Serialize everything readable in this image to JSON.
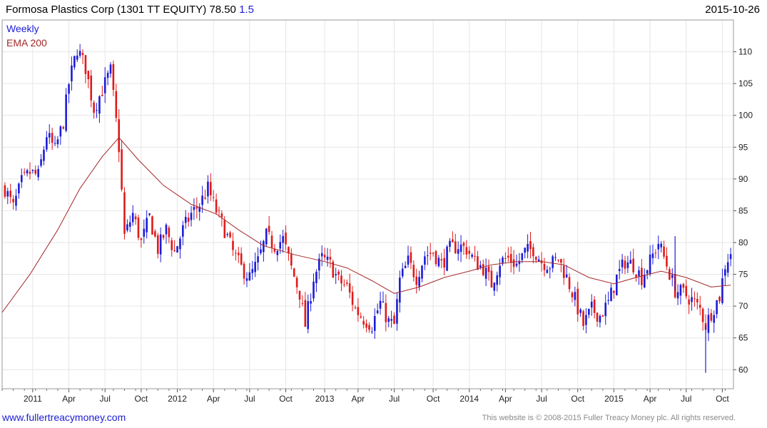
{
  "header": {
    "title": "Formosa Plastics Corp (1301 TT EQUITY) 78.50",
    "change": "1.5",
    "date": "2015-10-26"
  },
  "footer": {
    "url": "www.fullertreacymoney.com",
    "copyright": "This website is © 2008-2015 Fuller Treacy Money plc. All rights reserved."
  },
  "colors": {
    "up": "#1c1cd6",
    "down": "#e01a1a",
    "ema": "#a52828",
    "grid": "#e6e6e6",
    "frame": "#9a9a9a"
  },
  "chart_data": {
    "type": "candlestick",
    "frequency": "weekly",
    "legend": [
      "Weekly",
      "EMA 200"
    ],
    "legend_position": "top-left",
    "ylim": [
      57,
      115
    ],
    "y_ticks": [
      60,
      65,
      70,
      75,
      80,
      85,
      90,
      95,
      100,
      105,
      110
    ],
    "y_axis_side": "right",
    "grid": true,
    "x_range": [
      "2010-10-18",
      "2015-11-02"
    ],
    "x_ticks": [
      {
        "label": "2011",
        "date": "2011-01-03"
      },
      {
        "label": "Apr",
        "date": "2011-04-04"
      },
      {
        "label": "Jul",
        "date": "2011-07-04"
      },
      {
        "label": "Oct",
        "date": "2011-10-03"
      },
      {
        "label": "2012",
        "date": "2012-01-02"
      },
      {
        "label": "Apr",
        "date": "2012-04-02"
      },
      {
        "label": "Jul",
        "date": "2012-07-02"
      },
      {
        "label": "Oct",
        "date": "2012-10-01"
      },
      {
        "label": "2013",
        "date": "2013-01-07"
      },
      {
        "label": "Apr",
        "date": "2013-04-01"
      },
      {
        "label": "Jul",
        "date": "2013-07-01"
      },
      {
        "label": "Oct",
        "date": "2013-10-07"
      },
      {
        "label": "2014",
        "date": "2014-01-06"
      },
      {
        "label": "Apr",
        "date": "2014-04-07"
      },
      {
        "label": "Jul",
        "date": "2014-07-07"
      },
      {
        "label": "Oct",
        "date": "2014-10-06"
      },
      {
        "label": "2015",
        "date": "2015-01-05"
      },
      {
        "label": "Apr",
        "date": "2015-04-06"
      },
      {
        "label": "Jul",
        "date": "2015-07-06"
      },
      {
        "label": "Oct",
        "date": "2015-10-05"
      }
    ],
    "weekly_closes": [
      {
        "date": "2010-10-25",
        "close": 88.5
      },
      {
        "date": "2010-11-15",
        "close": 85.5
      },
      {
        "date": "2010-12-06",
        "close": 89.5
      },
      {
        "date": "2010-12-27",
        "close": 91.0
      },
      {
        "date": "2011-01-17",
        "close": 90.5
      },
      {
        "date": "2011-02-07",
        "close": 97.0
      },
      {
        "date": "2011-02-28",
        "close": 94.5
      },
      {
        "date": "2011-03-21",
        "close": 99.0
      },
      {
        "date": "2011-04-04",
        "close": 105.0
      },
      {
        "date": "2011-04-25",
        "close": 110.5
      },
      {
        "date": "2011-05-16",
        "close": 107.5
      },
      {
        "date": "2011-06-06",
        "close": 101.0
      },
      {
        "date": "2011-06-27",
        "close": 104.0
      },
      {
        "date": "2011-07-18",
        "close": 107.0
      },
      {
        "date": "2011-08-08",
        "close": 95.0
      },
      {
        "date": "2011-08-22",
        "close": 81.0
      },
      {
        "date": "2011-09-12",
        "close": 84.5
      },
      {
        "date": "2011-10-03",
        "close": 80.0
      },
      {
        "date": "2011-10-24",
        "close": 84.0
      },
      {
        "date": "2011-11-14",
        "close": 79.0
      },
      {
        "date": "2011-12-05",
        "close": 82.0
      },
      {
        "date": "2011-12-26",
        "close": 78.5
      },
      {
        "date": "2012-01-16",
        "close": 82.0
      },
      {
        "date": "2012-02-06",
        "close": 84.5
      },
      {
        "date": "2012-02-27",
        "close": 86.0
      },
      {
        "date": "2012-03-19",
        "close": 88.5
      },
      {
        "date": "2012-04-09",
        "close": 85.0
      },
      {
        "date": "2012-04-30",
        "close": 82.0
      },
      {
        "date": "2012-05-21",
        "close": 78.5
      },
      {
        "date": "2012-06-11",
        "close": 76.0
      },
      {
        "date": "2012-07-02",
        "close": 74.5
      },
      {
        "date": "2012-07-23",
        "close": 77.0
      },
      {
        "date": "2012-08-13",
        "close": 81.0
      },
      {
        "date": "2012-09-03",
        "close": 79.5
      },
      {
        "date": "2012-09-24",
        "close": 80.5
      },
      {
        "date": "2012-10-15",
        "close": 76.0
      },
      {
        "date": "2012-11-05",
        "close": 72.0
      },
      {
        "date": "2012-11-19",
        "close": 67.0
      },
      {
        "date": "2012-12-10",
        "close": 74.5
      },
      {
        "date": "2012-12-31",
        "close": 77.5
      },
      {
        "date": "2013-01-21",
        "close": 76.5
      },
      {
        "date": "2013-02-11",
        "close": 74.0
      },
      {
        "date": "2013-03-04",
        "close": 73.0
      },
      {
        "date": "2013-03-25",
        "close": 69.5
      },
      {
        "date": "2013-04-15",
        "close": 68.0
      },
      {
        "date": "2013-05-06",
        "close": 67.0
      },
      {
        "date": "2013-05-27",
        "close": 70.5
      },
      {
        "date": "2013-06-17",
        "close": 67.5
      },
      {
        "date": "2013-07-01",
        "close": 67.0
      },
      {
        "date": "2013-07-15",
        "close": 74.0
      },
      {
        "date": "2013-08-05",
        "close": 77.0
      },
      {
        "date": "2013-08-26",
        "close": 74.5
      },
      {
        "date": "2013-09-16",
        "close": 78.0
      },
      {
        "date": "2013-10-07",
        "close": 78.5
      },
      {
        "date": "2013-10-28",
        "close": 76.5
      },
      {
        "date": "2013-11-18",
        "close": 79.0
      },
      {
        "date": "2013-12-09",
        "close": 79.5
      },
      {
        "date": "2013-12-30",
        "close": 79.0
      },
      {
        "date": "2014-01-20",
        "close": 77.0
      },
      {
        "date": "2014-02-10",
        "close": 76.0
      },
      {
        "date": "2014-03-03",
        "close": 73.5
      },
      {
        "date": "2014-03-24",
        "close": 77.0
      },
      {
        "date": "2014-04-14",
        "close": 77.5
      },
      {
        "date": "2014-05-05",
        "close": 76.5
      },
      {
        "date": "2014-05-26",
        "close": 78.5
      },
      {
        "date": "2014-06-16",
        "close": 79.0
      },
      {
        "date": "2014-07-07",
        "close": 77.0
      },
      {
        "date": "2014-07-28",
        "close": 76.5
      },
      {
        "date": "2014-08-18",
        "close": 77.5
      },
      {
        "date": "2014-09-08",
        "close": 74.5
      },
      {
        "date": "2014-09-29",
        "close": 71.0
      },
      {
        "date": "2014-10-20",
        "close": 67.0
      },
      {
        "date": "2014-11-10",
        "close": 69.5
      },
      {
        "date": "2014-12-01",
        "close": 68.5
      },
      {
        "date": "2014-12-22",
        "close": 70.5
      },
      {
        "date": "2015-01-12",
        "close": 74.5
      },
      {
        "date": "2015-02-02",
        "close": 77.0
      },
      {
        "date": "2015-02-23",
        "close": 76.5
      },
      {
        "date": "2015-03-16",
        "close": 74.5
      },
      {
        "date": "2015-04-06",
        "close": 77.0
      },
      {
        "date": "2015-04-27",
        "close": 80.0
      },
      {
        "date": "2015-05-18",
        "close": 76.5
      },
      {
        "date": "2015-06-08",
        "close": 72.5
      },
      {
        "date": "2015-06-29",
        "close": 72.0
      },
      {
        "date": "2015-07-20",
        "close": 71.0
      },
      {
        "date": "2015-08-10",
        "close": 69.5
      },
      {
        "date": "2015-08-24",
        "close": 67.0
      },
      {
        "date": "2015-09-07",
        "close": 69.0
      },
      {
        "date": "2015-09-28",
        "close": 71.5
      },
      {
        "date": "2015-10-12",
        "close": 76.5
      },
      {
        "date": "2015-10-26",
        "close": 78.5
      }
    ],
    "ema_200": [
      {
        "date": "2010-10-18",
        "value": 69.0
      },
      {
        "date": "2010-12-27",
        "value": 75.0
      },
      {
        "date": "2011-03-07",
        "value": 82.0
      },
      {
        "date": "2011-05-02",
        "value": 88.5
      },
      {
        "date": "2011-06-27",
        "value": 93.5
      },
      {
        "date": "2011-08-08",
        "value": 96.5
      },
      {
        "date": "2011-09-26",
        "value": 93.0
      },
      {
        "date": "2011-11-28",
        "value": 89.0
      },
      {
        "date": "2012-02-06",
        "value": 86.0
      },
      {
        "date": "2012-04-09",
        "value": 84.5
      },
      {
        "date": "2012-06-04",
        "value": 82.0
      },
      {
        "date": "2012-08-06",
        "value": 79.5
      },
      {
        "date": "2012-10-29",
        "value": 78.0
      },
      {
        "date": "2013-01-07",
        "value": 77.0
      },
      {
        "date": "2013-03-04",
        "value": 76.0
      },
      {
        "date": "2013-05-06",
        "value": 74.0
      },
      {
        "date": "2013-07-01",
        "value": 72.0
      },
      {
        "date": "2013-09-02",
        "value": 73.0
      },
      {
        "date": "2013-11-04",
        "value": 74.5
      },
      {
        "date": "2014-01-06",
        "value": 75.5
      },
      {
        "date": "2014-03-03",
        "value": 76.5
      },
      {
        "date": "2014-05-05",
        "value": 77.0
      },
      {
        "date": "2014-07-07",
        "value": 77.0
      },
      {
        "date": "2014-09-01",
        "value": 76.5
      },
      {
        "date": "2014-11-03",
        "value": 74.5
      },
      {
        "date": "2015-01-05",
        "value": 73.5
      },
      {
        "date": "2015-03-02",
        "value": 74.5
      },
      {
        "date": "2015-05-04",
        "value": 75.5
      },
      {
        "date": "2015-07-06",
        "value": 74.5
      },
      {
        "date": "2015-09-07",
        "value": 73.0
      },
      {
        "date": "2015-10-26",
        "value": 73.3
      }
    ],
    "events": [
      {
        "label": "spike low",
        "date": "2015-08-24",
        "low": 59.5
      },
      {
        "label": "spike high",
        "date": "2015-06-08",
        "high": 81.0
      }
    ]
  }
}
